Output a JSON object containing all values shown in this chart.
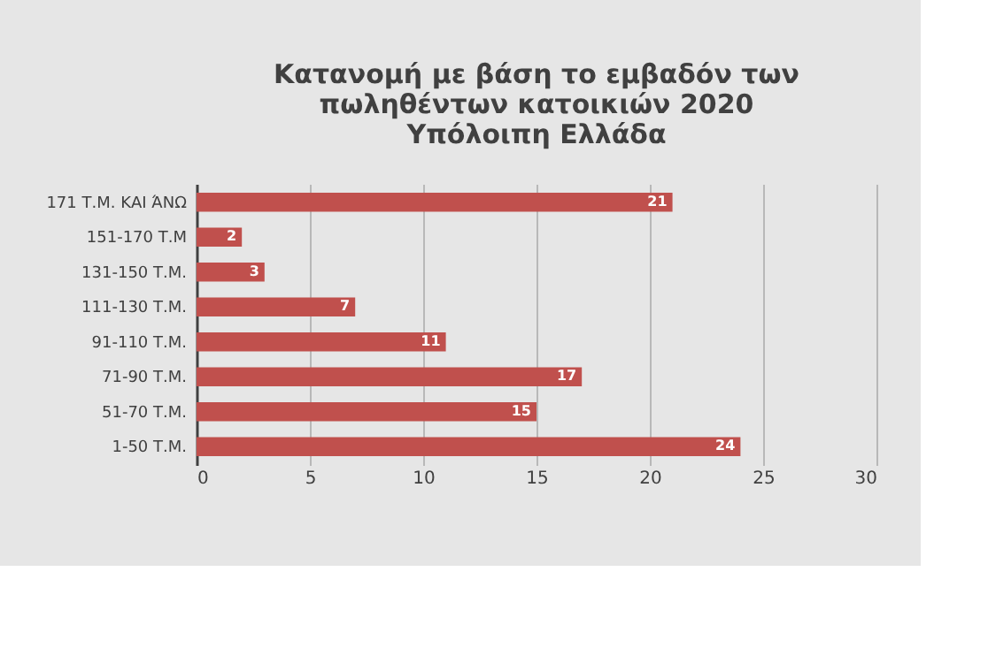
{
  "chart_data": {
    "type": "bar",
    "orientation": "horizontal",
    "title": "Κατανομή με βάση το εμβαδόν των\nπωληθέντων κατοικιών 2020\nΥπόλοιπη Ελλάδα",
    "categories": [
      "171 Τ.Μ. ΚΑΙ ΆΝΩ",
      "151-170 Τ.Μ",
      "131-150 Τ.Μ.",
      "111-130 Τ.Μ.",
      "91-110 Τ.Μ.",
      "71-90 Τ.Μ.",
      "51-70 Τ.Μ.",
      "1-50 Τ.Μ."
    ],
    "values": [
      21,
      2,
      3,
      7,
      11,
      17,
      15,
      24
    ],
    "color": "#c0504d",
    "xlim": [
      0,
      30
    ],
    "xticks": [
      0,
      5,
      10,
      15,
      20,
      25,
      30
    ],
    "grid": "x",
    "data_labels": true
  }
}
